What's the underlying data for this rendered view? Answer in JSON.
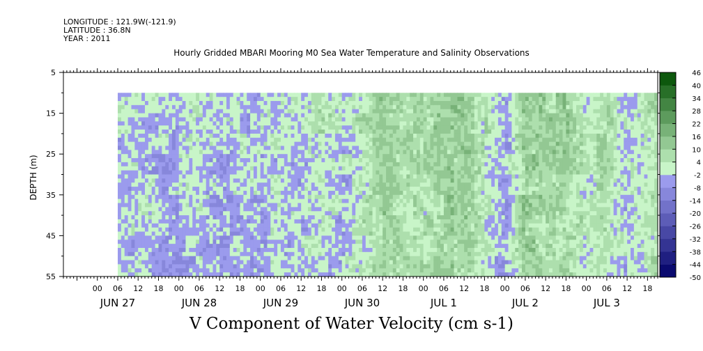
{
  "header": {
    "longitude": "LONGITUDE : 121.9W(-121.9)",
    "latitude": "LATITUDE : 36.8N",
    "year": "YEAR : 2011"
  },
  "chart_data": {
    "type": "heatmap",
    "title": "Hourly Gridded MBARI Mooring M0 Sea Water Temperature and Salinity Observations",
    "xlabel": "V Component of Water Velocity (cm s-1)",
    "ylabel": "DEPTH (m)",
    "x_axis": {
      "unit": "hours since JUN 27 00",
      "range_hours": [
        -10,
        165
      ],
      "hour_tick_labels": [
        "00",
        "06",
        "12",
        "18",
        "00",
        "06",
        "12",
        "18",
        "00",
        "06",
        "12",
        "18",
        "00",
        "06",
        "12",
        "18",
        "00",
        "06",
        "12",
        "18",
        "00",
        "06",
        "12",
        "18",
        "00",
        "06",
        "12",
        "18"
      ],
      "hour_tick_values": [
        0,
        6,
        12,
        18,
        24,
        30,
        36,
        42,
        48,
        54,
        60,
        66,
        72,
        78,
        84,
        90,
        96,
        102,
        108,
        114,
        120,
        126,
        132,
        138,
        144,
        150,
        156,
        162
      ],
      "day_labels": [
        "JUN 27",
        "JUN 28",
        "JUN 29",
        "JUN 30",
        "JUL  1",
        "JUL  2",
        "JUL  3"
      ],
      "day_label_hours": [
        6,
        30,
        54,
        78,
        102,
        126,
        150
      ]
    },
    "y_axis": {
      "range": [
        55,
        5
      ],
      "inverted": true,
      "tick_labels": [
        "5",
        "15",
        "25",
        "35",
        "45",
        "55"
      ],
      "tick_values": [
        5,
        15,
        25,
        35,
        45,
        55
      ]
    },
    "data_extent": {
      "start_hour": 6,
      "end_hour": 167,
      "depth_top": 10,
      "depth_bottom": 55
    },
    "approx_profile": {
      "hours": [
        6,
        12,
        18,
        24,
        30,
        36,
        42,
        48,
        54,
        60,
        66,
        72,
        78,
        84,
        90,
        96,
        102,
        108,
        114,
        120,
        126,
        132,
        138,
        144,
        150,
        156,
        162,
        167
      ],
      "v_cm_s": [
        -1,
        0,
        -2,
        -3,
        2,
        -4,
        -1,
        -2,
        1,
        -2,
        5,
        -1,
        4,
        12,
        8,
        7,
        10,
        14,
        6,
        -5,
        13,
        9,
        10,
        4,
        7,
        -2,
        5,
        9
      ]
    },
    "colorbar": {
      "levels": [
        -50,
        -44,
        -38,
        -32,
        -26,
        -20,
        -14,
        -8,
        -2,
        4,
        10,
        16,
        22,
        28,
        34,
        40,
        46
      ],
      "labels": [
        "46",
        "40",
        "34",
        "28",
        "22",
        "16",
        "10",
        "4",
        "-2",
        "-8",
        "-14",
        "-20",
        "-26",
        "-32",
        "-38",
        "-44",
        "-50"
      ],
      "color_low": "#000066",
      "color_mid_neg": "#b0b0ff",
      "color_mid_pos": "#c8f5c8",
      "color_high": "#004d00"
    }
  }
}
